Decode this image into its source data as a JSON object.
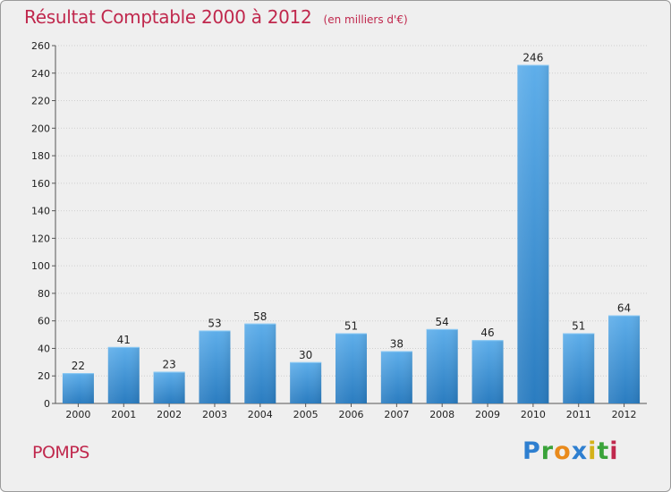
{
  "chart_data": {
    "type": "bar",
    "title": "Résultat Comptable 2000 à 2012",
    "unit_note": "(en milliers d'€)",
    "categories": [
      "2000",
      "2001",
      "2002",
      "2003",
      "2004",
      "2005",
      "2006",
      "2007",
      "2008",
      "2009",
      "2010",
      "2011",
      "2012"
    ],
    "values": [
      22,
      41,
      23,
      53,
      58,
      30,
      51,
      38,
      54,
      46,
      246,
      51,
      64
    ],
    "ylim": [
      0,
      260
    ],
    "yticks": [
      0,
      20,
      40,
      60,
      80,
      100,
      120,
      140,
      160,
      180,
      200,
      220,
      240,
      260
    ],
    "xlabel": "",
    "ylabel": "",
    "grid": true,
    "bar_color_top": "#5eaeea",
    "bar_color_bottom": "#2a7cc0"
  },
  "commune": "POMPS",
  "brand": {
    "name": "Proxiti",
    "letters": [
      "P",
      "r",
      "o",
      "x",
      "i",
      "t",
      "i"
    ]
  },
  "colors": {
    "title": "#c0284d",
    "background": "#efefef",
    "grid": "#cfcfcf"
  }
}
